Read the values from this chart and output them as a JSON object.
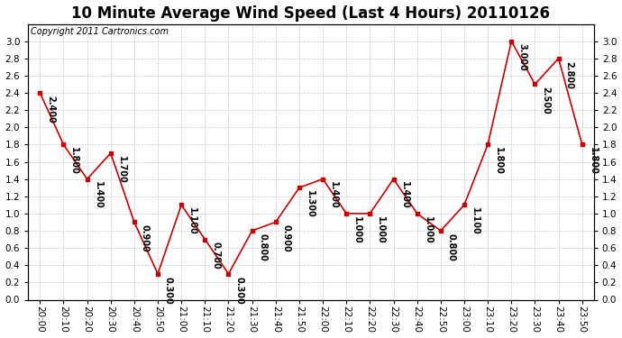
{
  "title": "10 Minute Average Wind Speed (Last 4 Hours) 20110126",
  "copyright": "Copyright 2011 Cartronics.com",
  "x_labels": [
    "20:00",
    "20:10",
    "20:20",
    "20:30",
    "20:40",
    "20:50",
    "21:00",
    "21:10",
    "21:20",
    "21:30",
    "21:40",
    "21:50",
    "22:00",
    "22:10",
    "22:20",
    "22:30",
    "22:40",
    "22:50",
    "23:00",
    "23:10",
    "23:20",
    "23:30",
    "23:40",
    "23:50"
  ],
  "y_values": [
    2.4,
    1.8,
    1.4,
    1.7,
    0.9,
    0.3,
    1.1,
    0.7,
    0.3,
    0.8,
    0.9,
    1.3,
    1.4,
    1.0,
    1.0,
    1.4,
    1.0,
    0.8,
    1.1,
    1.8,
    3.0,
    2.5,
    2.8,
    1.8
  ],
  "point_labels": [
    "2.400",
    "1.800",
    "1.400",
    "1.700",
    "0.900",
    "0.300",
    "1.100",
    "0.700",
    "0.300",
    "0.800",
    "0.900",
    "1.300",
    "1.400",
    "1.000",
    "1.000",
    "1.400",
    "1.000",
    "0.800",
    "1.100",
    "1.800",
    "3.000",
    "2.500",
    "2.800",
    "1.800"
  ],
  "line_color": "#cc0000",
  "bg_color": "#ffffff",
  "grid_color": "#bbbbbb",
  "ylim": [
    0.0,
    3.2
  ],
  "yticks": [
    0.0,
    0.2,
    0.4,
    0.6,
    0.8,
    1.0,
    1.2,
    1.4,
    1.6,
    1.8,
    2.0,
    2.2,
    2.4,
    2.6,
    2.8,
    3.0
  ],
  "title_fontsize": 12,
  "label_fontsize": 7,
  "axis_fontsize": 7.5,
  "copyright_fontsize": 7
}
